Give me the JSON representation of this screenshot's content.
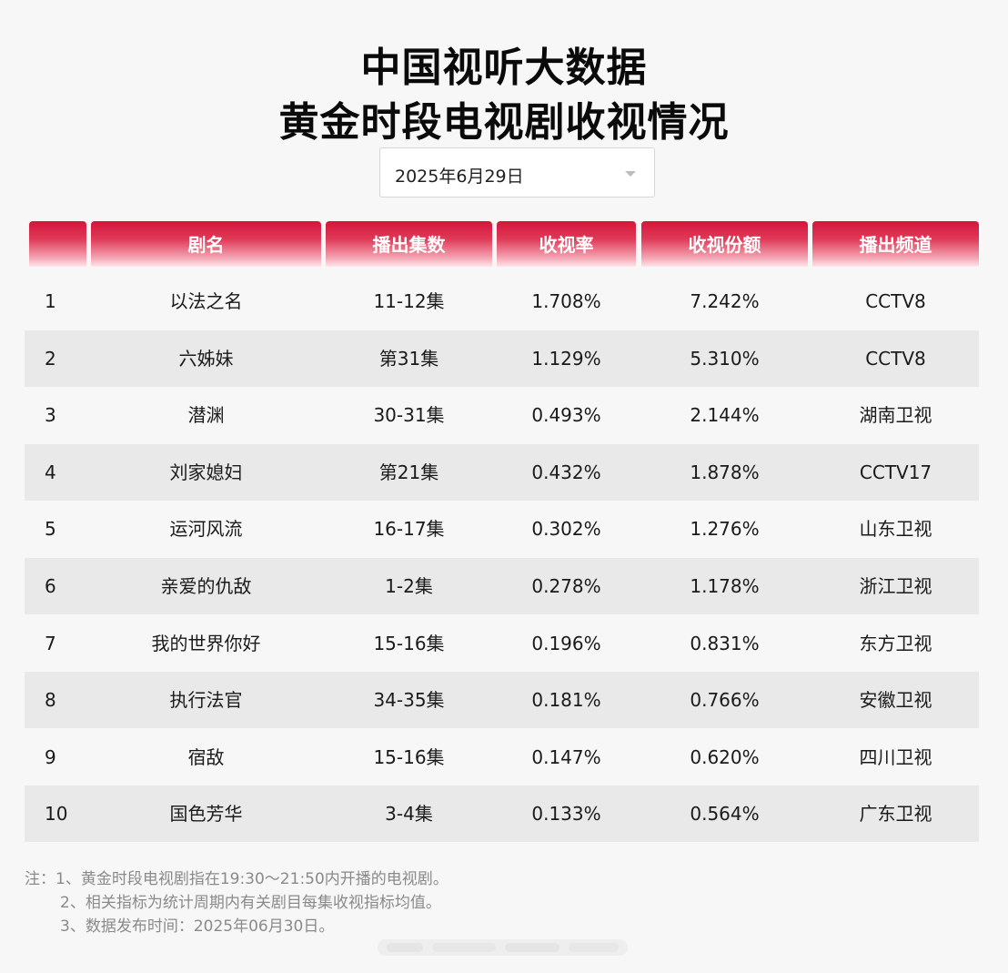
{
  "title": {
    "line1": "中国视听大数据",
    "line2": "黄金时段电视剧收视情况"
  },
  "date_select": {
    "value": "2025年6月29日"
  },
  "table": {
    "headers": [
      "",
      "剧名",
      "播出集数",
      "收视率",
      "收视份额",
      "播出频道"
    ],
    "rows": [
      {
        "rank": "1",
        "name": "以法之名",
        "episodes": "11-12集",
        "rating": "1.708%",
        "share": "7.242%",
        "channel": "CCTV8"
      },
      {
        "rank": "2",
        "name": "六姊妹",
        "episodes": "第31集",
        "rating": "1.129%",
        "share": "5.310%",
        "channel": "CCTV8"
      },
      {
        "rank": "3",
        "name": "潜渊",
        "episodes": "30-31集",
        "rating": "0.493%",
        "share": "2.144%",
        "channel": "湖南卫视"
      },
      {
        "rank": "4",
        "name": "刘家媳妇",
        "episodes": "第21集",
        "rating": "0.432%",
        "share": "1.878%",
        "channel": "CCTV17"
      },
      {
        "rank": "5",
        "name": "运河风流",
        "episodes": "16-17集",
        "rating": "0.302%",
        "share": "1.276%",
        "channel": "山东卫视"
      },
      {
        "rank": "6",
        "name": "亲爱的仇敌",
        "episodes": "1-2集",
        "rating": "0.278%",
        "share": "1.178%",
        "channel": "浙江卫视"
      },
      {
        "rank": "7",
        "name": "我的世界你好",
        "episodes": "15-16集",
        "rating": "0.196%",
        "share": "0.831%",
        "channel": "东方卫视"
      },
      {
        "rank": "8",
        "name": "执行法官",
        "episodes": "34-35集",
        "rating": "0.181%",
        "share": "0.766%",
        "channel": "安徽卫视"
      },
      {
        "rank": "9",
        "name": "宿敌",
        "episodes": "15-16集",
        "rating": "0.147%",
        "share": "0.620%",
        "channel": "四川卫视"
      },
      {
        "rank": "10",
        "name": "国色芳华",
        "episodes": "3-4集",
        "rating": "0.133%",
        "share": "0.564%",
        "channel": "广东卫视"
      }
    ]
  },
  "notes": [
    "注：1、黄金时段电视剧指在19:30～21:50内开播的电视剧。",
    "2、相关指标为统计周期内有关剧目每集收视指标均值。",
    "3、数据发布时间：2025年06月30日。"
  ],
  "colors": {
    "header_red": "#d4153a",
    "row_shade": "#e9e9e9",
    "background": "#f7f7f7"
  }
}
